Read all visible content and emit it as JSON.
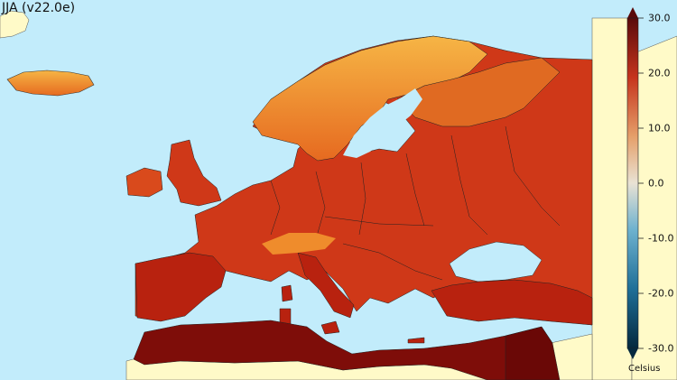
{
  "title": "JJA (v22.0e)",
  "colorbar": {
    "unit": "Celsius",
    "ticks": [
      "30.0",
      "20.0",
      "10.0",
      "0.0",
      "-10.0",
      "-20.0",
      "-30.0"
    ],
    "range": [
      -30,
      30
    ],
    "colors": [
      "#04283e",
      "#1f6f98",
      "#6eb2cf",
      "#e9e2d4",
      "#e5a06a",
      "#c6341d",
      "#5a0a0a"
    ]
  },
  "map": {
    "region": "Europe",
    "sea_color": "#c2ecfb",
    "no_data_land_color": "#fffac8",
    "border_color": "#222222",
    "scale": [
      "#f5b142",
      "#ef7a22",
      "#d9411c",
      "#b4200f",
      "#7a0a08"
    ]
  }
}
